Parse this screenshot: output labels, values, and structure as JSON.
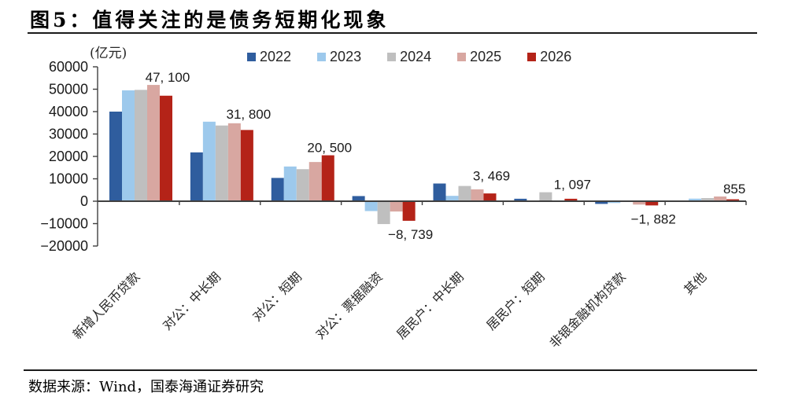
{
  "title": "图5：值得关注的是债务短期化现象",
  "unit_label": "(亿元)",
  "source": "数据来源：Wind，国泰海通证券研究",
  "colors": {
    "s2022": "#2F5D9E",
    "s2023": "#9DC9EC",
    "s2024": "#BFBFBF",
    "s2025": "#D8A7A1",
    "s2026": "#B42318",
    "axis": "#404040",
    "text": "#262626"
  },
  "chart_data": {
    "type": "bar",
    "title": "图5：值得关注的是债务短期化现象",
    "ylabel": "(亿元)",
    "ylim": [
      -20000,
      60000
    ],
    "ytick_step": 10000,
    "legend_position": "top",
    "grid": false,
    "categories": [
      "新增人民币贷款",
      "对公：中长期",
      "对公：短期",
      "对公：票据融资",
      "居民户：中长期",
      "居民户：短期",
      "非银金融机构贷款",
      "其他"
    ],
    "series": [
      {
        "name": "2022",
        "values": [
          40000,
          21800,
          10400,
          2300,
          7900,
          1100,
          -1200,
          50
        ]
      },
      {
        "name": "2023",
        "values": [
          49500,
          35500,
          15500,
          -4400,
          2400,
          -150,
          -800,
          1150
        ]
      },
      {
        "name": "2024",
        "values": [
          49700,
          33800,
          14300,
          -10200,
          6800,
          4000,
          -150,
          1400
        ]
      },
      {
        "name": "2025",
        "values": [
          51900,
          34800,
          17500,
          -4600,
          5300,
          100,
          -1500,
          2100
        ]
      },
      {
        "name": "2026",
        "values": [
          47100,
          31800,
          20500,
          -8739,
          3469,
          1097,
          -1882,
          855
        ]
      }
    ],
    "data_labels": {
      "series": "2026",
      "texts": [
        "47, 100",
        "31, 800",
        "20, 500",
        "−8, 739",
        "3, 469",
        "1, 097",
        "−1, 882",
        "855"
      ]
    }
  }
}
